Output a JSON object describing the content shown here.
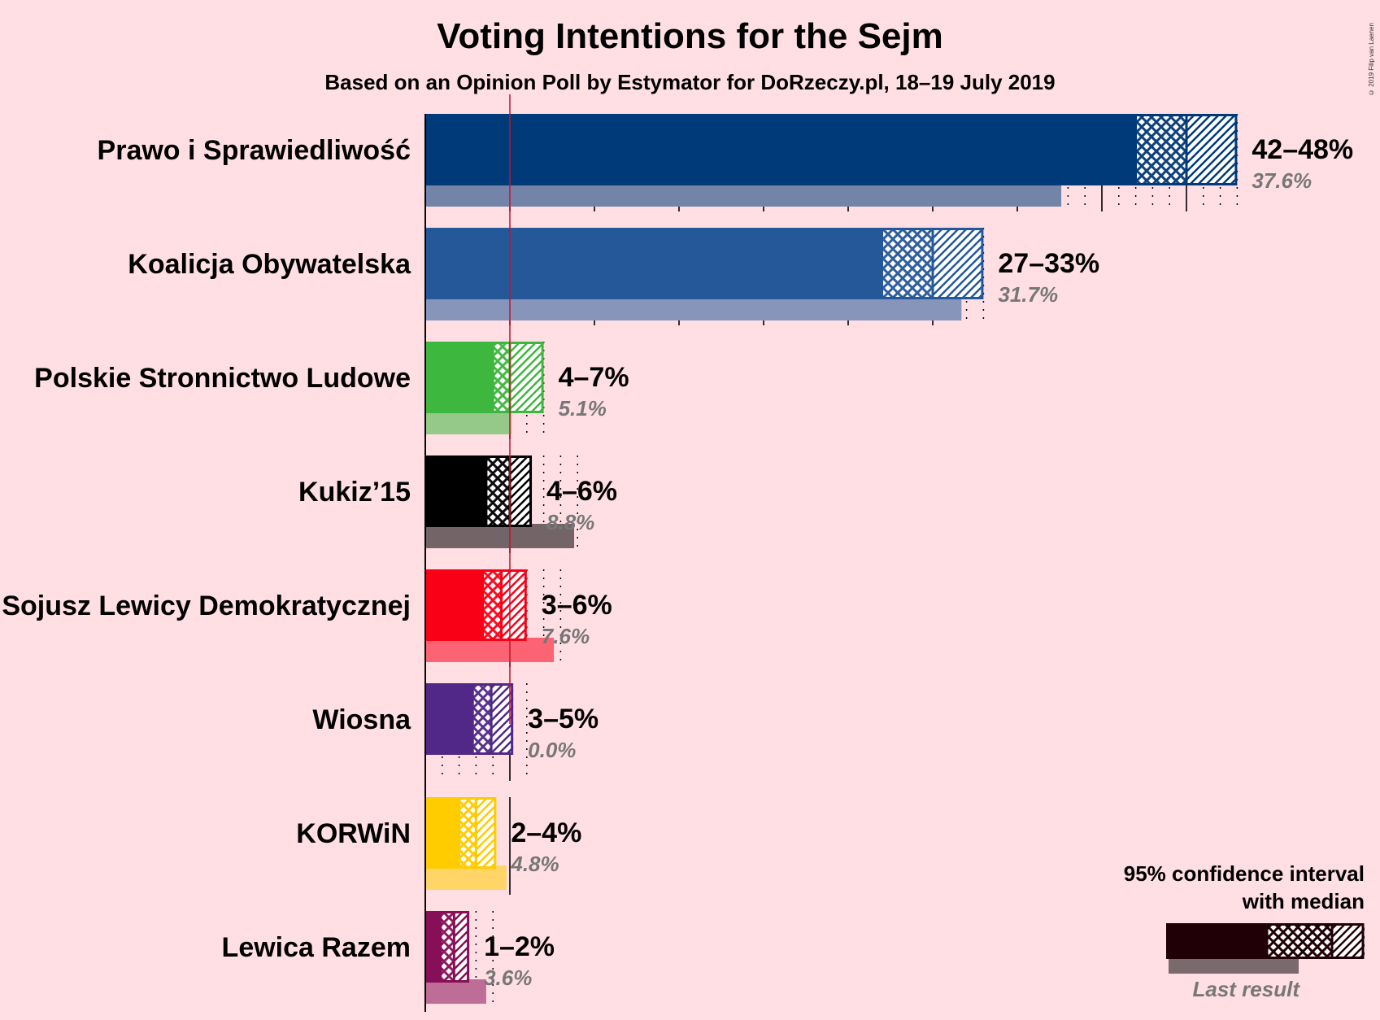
{
  "title": "Voting Intentions for the Sejm",
  "subtitle": "Based on an Opinion Poll by Estymator for DoRzeczy.pl, 18–19 July 2019",
  "copyright": "© 2019 Filip van Laenen",
  "legend": {
    "title_line1": "95% confidence interval",
    "title_line2": "with median",
    "last_result": "Last result"
  },
  "chart_data": {
    "type": "bar",
    "orientation": "horizontal",
    "threshold": 5,
    "categories": [
      "Prawo i Sprawiedliwość",
      "Koalicja Obywatelska",
      "Polskie Stronnictwo Ludowe",
      "Kukiz’15",
      "Sojusz Lewicy Demokratycznej",
      "Wiosna",
      "KORWiN",
      "Lewica Razem"
    ],
    "series": [
      {
        "name": "95% confidence interval",
        "values": [
          {
            "low": 42,
            "median": 45,
            "high": 48
          },
          {
            "low": 27,
            "median": 30,
            "high": 33
          },
          {
            "low": 4,
            "median": 5,
            "high": 7
          },
          {
            "low": 3.6,
            "median": 5,
            "high": 6.3
          },
          {
            "low": 3.4,
            "median": 4.5,
            "high": 6
          },
          {
            "low": 2.8,
            "median": 3.9,
            "high": 5.2
          },
          {
            "low": 2,
            "median": 3,
            "high": 4.2
          },
          {
            "low": 0.9,
            "median": 1.7,
            "high": 2.6
          }
        ]
      },
      {
        "name": "Last result",
        "values": [
          37.6,
          31.7,
          5.1,
          8.8,
          7.6,
          0.0,
          4.8,
          3.6
        ]
      }
    ],
    "range_labels": [
      "42–48%",
      "27–33%",
      "4–7%",
      "4–6%",
      "3–6%",
      "3–5%",
      "2–4%",
      "1–2%"
    ],
    "last_labels": [
      "37.6%",
      "31.7%",
      "5.1%",
      "8.8%",
      "7.6%",
      "0.0%",
      "4.8%",
      "3.6%"
    ],
    "colors": [
      "#003A78",
      "#245899",
      "#3EB73E",
      "#000000",
      "#FA0016",
      "#512887",
      "#FFCC00",
      "#870F57"
    ],
    "xlim": [
      0,
      48
    ]
  }
}
